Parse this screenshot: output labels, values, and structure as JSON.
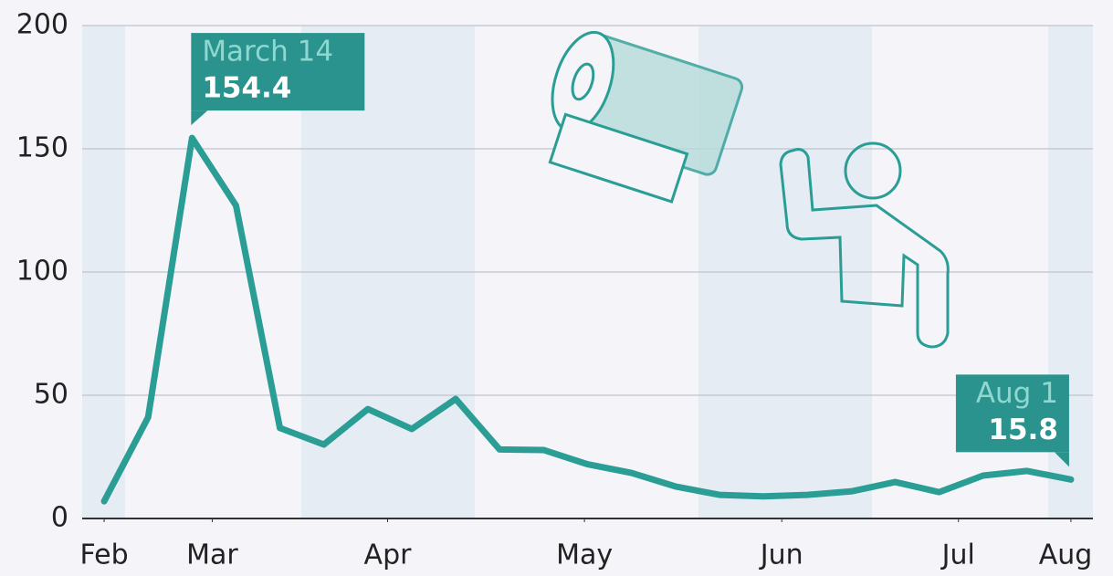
{
  "chart_data": {
    "type": "line",
    "x": [
      0,
      1,
      2,
      3,
      4,
      5,
      6,
      7,
      8,
      9,
      10,
      11,
      12,
      13,
      14,
      15,
      16,
      17,
      18,
      19,
      20,
      21,
      22
    ],
    "series": [
      {
        "color": "#2a9d95",
        "values": [
          7,
          41,
          154.4,
          127,
          36.7,
          30,
          44.4,
          36.3,
          48.5,
          28,
          27.8,
          22,
          18.5,
          13,
          9.6,
          9,
          9.6,
          11,
          14.8,
          10.7,
          17.4,
          19.3,
          15.8
        ]
      }
    ],
    "xlim": [
      -0.5,
      22.5
    ],
    "xticks": [
      {
        "value": 0,
        "label": "Feb"
      },
      {
        "value": 2.46,
        "label": "Mar"
      },
      {
        "value": 6.45,
        "label": "Apr"
      },
      {
        "value": 10.93,
        "label": "May"
      },
      {
        "value": 15.42,
        "label": "Jun"
      },
      {
        "value": 19.44,
        "label": "Jul"
      },
      {
        "value": 22,
        "label": "Aug"
      }
    ],
    "ylim": [
      0,
      200
    ],
    "yticks": [
      0,
      50,
      100,
      150,
      200
    ],
    "grid": true,
    "annotations": [
      {
        "text": "March 14",
        "x": 2,
        "y": 154.4
      },
      {
        "text": "Aug 1",
        "x": 22,
        "y": 15.8
      }
    ]
  }
}
